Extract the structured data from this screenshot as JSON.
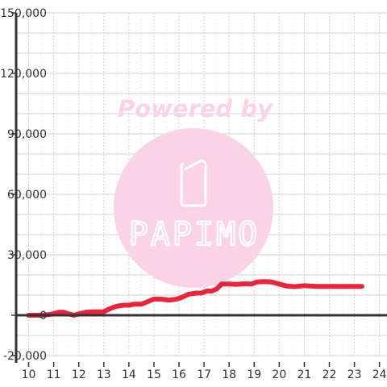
{
  "chart_data": {
    "type": "line",
    "x": [
      10.0,
      10.3,
      10.5,
      10.8,
      11.0,
      11.2,
      11.4,
      11.6,
      11.8,
      12.0,
      12.3,
      12.6,
      12.9,
      13.0,
      13.2,
      13.4,
      13.6,
      13.8,
      14.0,
      14.2,
      14.5,
      14.8,
      15.0,
      15.3,
      15.6,
      15.9,
      16.1,
      16.4,
      16.7,
      16.9,
      17.1,
      17.3,
      17.5,
      17.7,
      18.0,
      18.3,
      18.6,
      18.9,
      19.1,
      19.4,
      19.7,
      20.0,
      20.3,
      20.6,
      21.0,
      21.5,
      22.0,
      22.5,
      23.0,
      23.3
    ],
    "y": [
      0,
      0,
      0,
      300,
      800,
      1500,
      1500,
      700,
      0,
      700,
      1500,
      1700,
      1700,
      1800,
      3000,
      4000,
      4700,
      5000,
      5000,
      5500,
      5500,
      7000,
      8000,
      8000,
      7500,
      8000,
      8800,
      10500,
      11000,
      11000,
      12000,
      12000,
      13000,
      15500,
      15500,
      15300,
      15600,
      15500,
      16500,
      16700,
      16500,
      15500,
      14500,
      14200,
      14700,
      14300,
      14300,
      14300,
      14300,
      14300
    ],
    "xticks": [
      "10",
      "11",
      "12",
      "13",
      "14",
      "15",
      "16",
      "17",
      "18",
      "19",
      "20",
      "21",
      "22",
      "23",
      "24"
    ],
    "yticks": [
      "150,000",
      "120,000",
      "90,000",
      "60,000",
      "30,000",
      "0",
      "-20,000"
    ],
    "xlim": [
      9.5,
      24.3
    ],
    "ylim": [
      -20000,
      150000
    ],
    "grid": true,
    "line_color": "#e8253d"
  },
  "watermark": {
    "text": "Powered by",
    "logo_text": "PAPIMO",
    "color": "#fbd3e6"
  }
}
